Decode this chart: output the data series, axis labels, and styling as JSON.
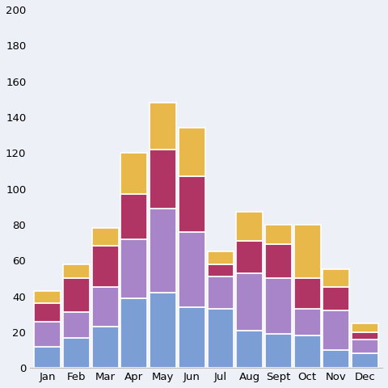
{
  "months": [
    "Jan",
    "Feb",
    "Mar",
    "Apr",
    "May",
    "Jun",
    "Jul",
    "Aug",
    "Sept",
    "Oct",
    "Nov",
    "Dec"
  ],
  "series": {
    "blue": [
      12,
      17,
      23,
      39,
      42,
      34,
      33,
      21,
      19,
      18,
      10,
      8
    ],
    "purple": [
      14,
      14,
      22,
      33,
      47,
      42,
      18,
      32,
      31,
      15,
      22,
      8
    ],
    "crimson": [
      10,
      19,
      23,
      25,
      33,
      31,
      7,
      18,
      19,
      17,
      13,
      4
    ],
    "yellow": [
      7,
      8,
      10,
      23,
      26,
      27,
      7,
      16,
      11,
      30,
      10,
      5
    ]
  },
  "colors": {
    "blue": "#7b9fd4",
    "purple": "#a885c8",
    "crimson": "#b03565",
    "yellow": "#e8b84b"
  },
  "ylim": [
    0,
    200
  ],
  "yticks": [
    0,
    20,
    40,
    60,
    80,
    100,
    120,
    140,
    160,
    180,
    200
  ],
  "background_color": "#eef0f7",
  "bar_edge_color": "#ffffff",
  "bar_width": 0.92,
  "figsize": [
    4.8,
    4.8
  ],
  "dpi": 100
}
